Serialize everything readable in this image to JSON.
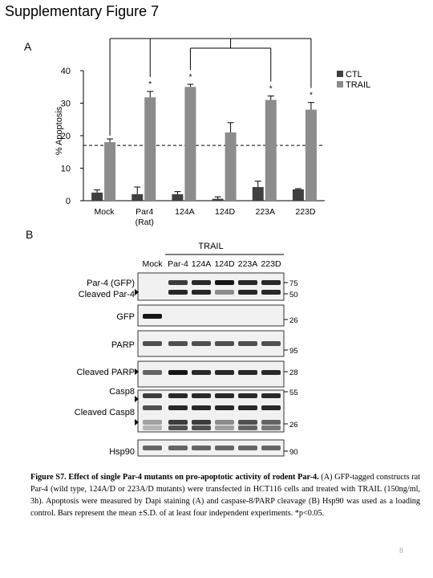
{
  "title": "Supplementary Figure 7",
  "panel_a": {
    "label": "A",
    "y_axis_label": "% Apoptosis",
    "y_ticks": [
      "0",
      "10",
      "20",
      "30",
      "40"
    ],
    "categories": [
      "Mock",
      "Par4\n(Rat)",
      "124A",
      "124D",
      "223A",
      "223D"
    ],
    "legend": [
      {
        "name": "CTL",
        "color": "#404040"
      },
      {
        "name": "TRAIL",
        "color": "#8c8c8c"
      }
    ],
    "significance_marker": "*"
  },
  "chart_data": {
    "type": "bar",
    "categories": [
      "Mock",
      "Par4 (Rat)",
      "124A",
      "124D",
      "223A",
      "223D"
    ],
    "series": [
      {
        "name": "CTL",
        "values": [
          2.5,
          2.0,
          2.0,
          0.6,
          4.2,
          3.5
        ],
        "errors": [
          0.8,
          2.2,
          0.8,
          0.6,
          1.8,
          0.2
        ],
        "color": "#404040"
      },
      {
        "name": "TRAIL",
        "values": [
          18.0,
          31.8,
          35.0,
          21.0,
          31.0,
          28.0
        ],
        "errors": [
          1.0,
          1.8,
          0.8,
          3.0,
          1.2,
          2.2
        ],
        "color": "#8c8c8c"
      }
    ],
    "significant": [
      false,
      true,
      true,
      false,
      true,
      true
    ],
    "reference_line": 17,
    "comparison_bracket": true,
    "ylabel": "% Apoptosis",
    "ylim": [
      0,
      40
    ],
    "legend_position": "top-right",
    "grid": false
  },
  "panel_b": {
    "label": "B",
    "treatment_header": "TRAIL",
    "lanes": [
      "Mock",
      "Par-4",
      "124A",
      "124D",
      "223A",
      "223D"
    ],
    "blots": [
      {
        "left_labels": [
          "Par-4 (GFP)",
          "Cleaved Par-4"
        ],
        "right_markers": [
          "75",
          "50"
        ]
      },
      {
        "left_labels": [
          "GFP"
        ],
        "right_markers": [
          "26"
        ]
      },
      {
        "left_labels": [
          "PARP"
        ],
        "right_markers": [
          "95"
        ]
      },
      {
        "left_labels": [
          "Cleaved PARP"
        ],
        "right_markers": [
          "28"
        ]
      },
      {
        "left_labels": [
          "Casp8",
          "Cleaved Casp8"
        ],
        "right_markers": [
          "55",
          "26"
        ]
      },
      {
        "left_labels": [
          "Hsp90"
        ],
        "right_markers": [
          "90"
        ]
      }
    ]
  },
  "caption": {
    "bold_prefix": "Figure S7. Effect of single Par-4 mutants on pro-apoptotic activity of rodent Par-4.",
    "body": " (A) GFP-tagged constructs rat Par-4 (wild type, 124A/D or 223A/D mutants) were transfected in HCT116 cells and treated with TRAIL (150ng/ml, 3h). Apoptosis were measured by Dapi staining (A) and caspase-8/PARP cleavage (B) Hsp90 was used as a loading control. Bars represent the mean ±S.D. of at least four independent experiments. *p<0.05."
  },
  "page_number": "8"
}
